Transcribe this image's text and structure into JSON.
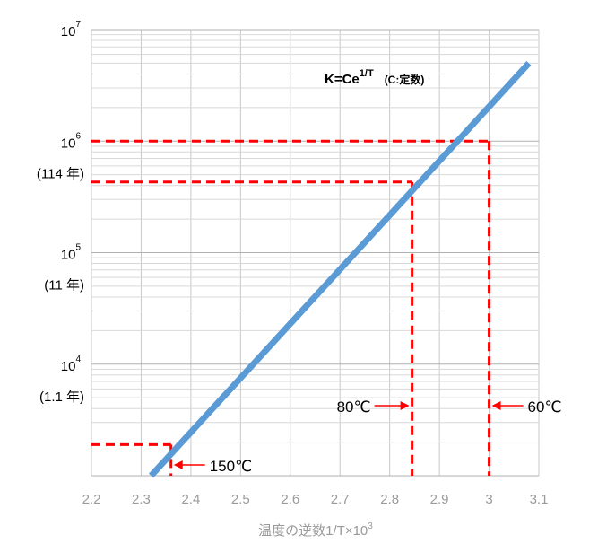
{
  "chart_data": {
    "type": "line",
    "xlabel": "温度の逆数1/T×10",
    "xlabel_sup": "3",
    "x_ticks": [
      "2.2",
      "2.3",
      "2.4",
      "2.5",
      "2.6",
      "2.7",
      "2.8",
      "2.9",
      "3",
      "3.1"
    ],
    "xlim": [
      2.2,
      3.1
    ],
    "y_scale": "log",
    "ylim": [
      1000,
      10000000
    ],
    "y_ticks": [
      {
        "value": 10000,
        "base": "10",
        "exp": "4"
      },
      {
        "value": 100000,
        "base": "10",
        "exp": "5"
      },
      {
        "value": 1000000,
        "base": "10",
        "exp": "6"
      },
      {
        "value": 10000000,
        "base": "10",
        "exp": "7"
      }
    ],
    "year_labels": [
      {
        "value": 10000,
        "text": "(1.1 年)"
      },
      {
        "value": 100000,
        "text": "(11 年)"
      },
      {
        "value": 1000000,
        "text": "(114 年)"
      }
    ],
    "grid": true,
    "series": [
      {
        "color": "#5b9bd5",
        "points": [
          [
            2.32,
            1000
          ],
          [
            3.08,
            5000000
          ]
        ]
      }
    ],
    "formula": {
      "main": "K=Ce",
      "sup": "1/T",
      "note": "(C:定数)"
    },
    "annotations": [
      {
        "label": "150℃",
        "x": 2.36,
        "y": 1900,
        "side": "right"
      },
      {
        "label": "80℃",
        "x": 2.845,
        "y": 430000,
        "side": "left"
      },
      {
        "label": "60℃",
        "x": 3.0,
        "y": 1000000,
        "side": "right"
      }
    ],
    "reference_color": "#ff0000"
  }
}
